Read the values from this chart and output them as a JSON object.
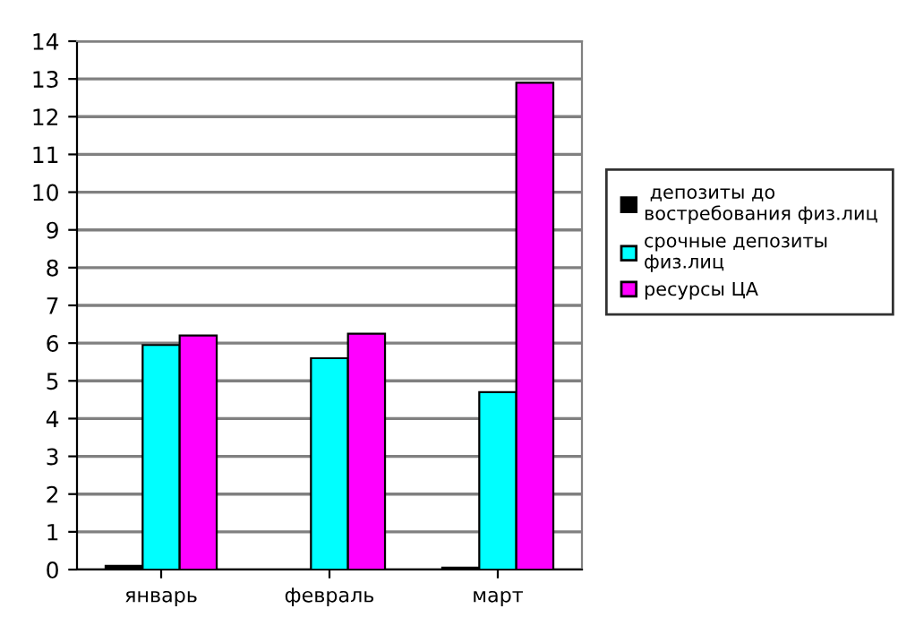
{
  "chart_data": {
    "type": "bar",
    "categories": [
      "январь",
      "февраль",
      "март"
    ],
    "series": [
      {
        "name": " депозиты до\nвостребования физ.лиц",
        "color": "#000000",
        "values": [
          0.1,
          0,
          0.05
        ]
      },
      {
        "name": "срочные депозиты\nфиз.лиц",
        "color": "#00ffff",
        "values": [
          5.95,
          5.6,
          4.7
        ]
      },
      {
        "name": "ресурсы ЦА",
        "color": "#ff00ff",
        "values": [
          6.2,
          6.25,
          12.9
        ]
      }
    ],
    "ylim": [
      0,
      14
    ],
    "yticks": [
      0,
      1,
      2,
      3,
      4,
      5,
      6,
      7,
      8,
      9,
      10,
      11,
      12,
      13,
      14
    ],
    "grid": "y",
    "legend": "right"
  }
}
